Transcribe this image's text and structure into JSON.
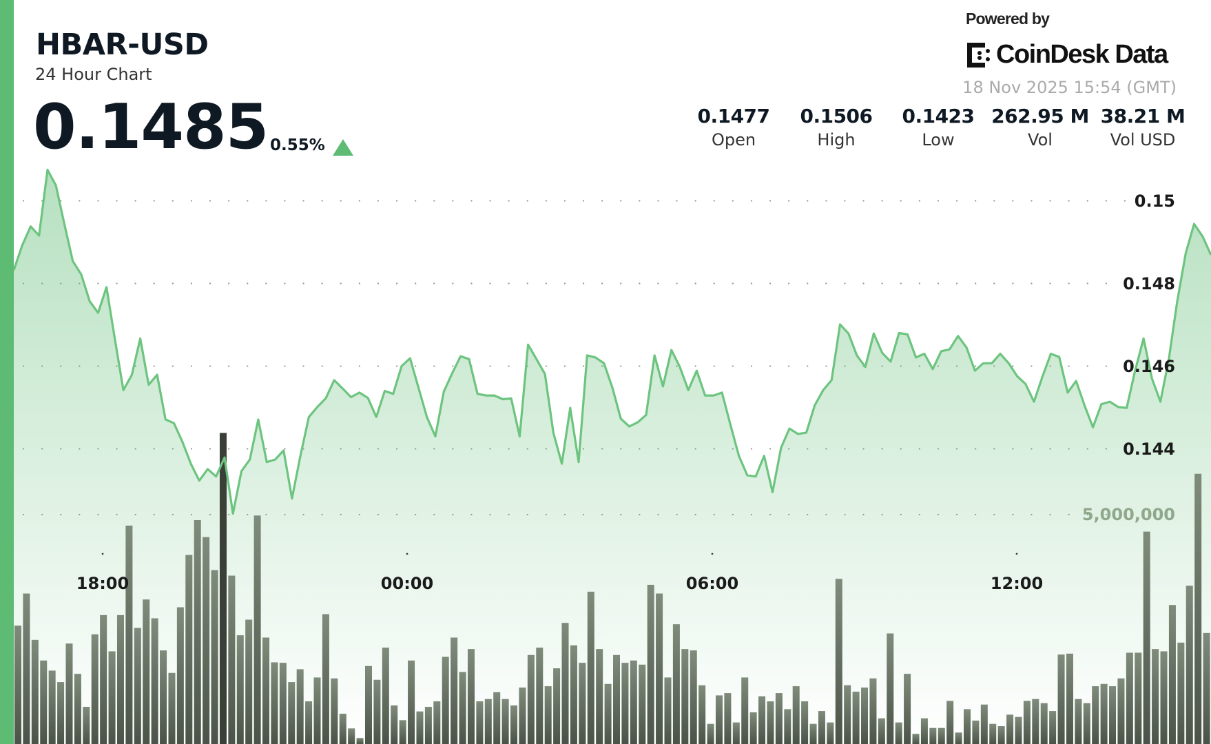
{
  "header": {
    "title": "HBAR-USD",
    "subtitle": "24 Hour Chart",
    "price": "0.1485",
    "change_pct": "0.55%",
    "change_direction": "up",
    "powered_by": "Powered by",
    "brand": "CoinDesk Data",
    "timestamp": "18 Nov 2025 15:54 (GMT)"
  },
  "stats": [
    {
      "value": "0.1477",
      "label": "Open"
    },
    {
      "value": "0.1506",
      "label": "High"
    },
    {
      "value": "0.1423",
      "label": "Low"
    },
    {
      "value": "262.95 M",
      "label": "Vol"
    },
    {
      "value": "38.21 M",
      "label": "Vol USD"
    }
  ],
  "colors": {
    "accent": "#5dbb73",
    "line": "#6cc47f",
    "volume": "#5b6457",
    "text": "#0f1923"
  },
  "chart_data": {
    "type": "area",
    "title": "",
    "interval_minutes": 10,
    "x_ticks": [
      "18:00",
      "00:00",
      "06:00",
      "12:00"
    ],
    "y_ticks": [
      "0.15",
      "0.148",
      "0.146",
      "0.144"
    ],
    "y_tick_values": [
      0.15,
      0.148,
      0.146,
      0.144
    ],
    "volume_tick": "5,000,000",
    "volume_tick_value": 5000000,
    "grid": true,
    "price": [
      0.14832,
      0.14892,
      0.14938,
      0.14916,
      0.15075,
      0.15037,
      0.14944,
      0.14854,
      0.14822,
      0.14757,
      0.14729,
      0.14791,
      0.14664,
      0.14542,
      0.14579,
      0.14667,
      0.14555,
      0.14579,
      0.14471,
      0.14462,
      0.14417,
      0.14364,
      0.14323,
      0.14351,
      0.14333,
      0.14379,
      0.14243,
      0.14346,
      0.14374,
      0.14471,
      0.14368,
      0.14374,
      0.14396,
      0.1428,
      0.14383,
      0.14477,
      0.14501,
      0.14522,
      0.14566,
      0.14546,
      0.14525,
      0.14536,
      0.14523,
      0.14477,
      0.1454,
      0.14533,
      0.146,
      0.14619,
      0.14548,
      0.14477,
      0.1443,
      0.14538,
      0.14583,
      0.14624,
      0.14617,
      0.14533,
      0.14529,
      0.14529,
      0.1452,
      0.14522,
      0.1443,
      0.14652,
      0.14617,
      0.14581,
      0.14439,
      0.14364,
      0.14499,
      0.14368,
      0.14626,
      0.14621,
      0.14607,
      0.14548,
      0.14473,
      0.14454,
      0.14464,
      0.14482,
      0.14626,
      0.14551,
      0.14639,
      0.14598,
      0.14542,
      0.14589,
      0.14529,
      0.14529,
      0.14536,
      0.14458,
      0.14383,
      0.14336,
      0.14333,
      0.14383,
      0.14295,
      0.14402,
      0.14449,
      0.14436,
      0.14439,
      0.14505,
      0.14542,
      0.14566,
      0.14701,
      0.14679,
      0.14626,
      0.14598,
      0.14679,
      0.14632,
      0.14611,
      0.1468,
      0.14677,
      0.14621,
      0.1463,
      0.14593,
      0.14636,
      0.14641,
      0.14673,
      0.14645,
      0.14589,
      0.14607,
      0.14607,
      0.1463,
      0.14607,
      0.14576,
      0.14557,
      0.14514,
      0.14574,
      0.1463,
      0.14622,
      0.14536,
      0.14564,
      0.14505,
      0.14452,
      0.14508,
      0.14514,
      0.14501,
      0.14499,
      0.14589,
      0.14667,
      0.1457,
      0.14514,
      0.14617,
      0.14757,
      0.14873,
      0.14944,
      0.14914,
      0.14869
    ],
    "volume_millions": [
      2.58,
      3.28,
      2.27,
      1.82,
      1.6,
      1.35,
      2.19,
      1.53,
      0.81,
      2.39,
      2.81,
      2.02,
      2.81,
      4.76,
      2.53,
      3.15,
      2.74,
      2.04,
      1.55,
      2.98,
      4.12,
      4.88,
      4.51,
      3.79,
      6.78,
      3.67,
      2.37,
      2.71,
      4.98,
      2.32,
      1.78,
      1.77,
      1.35,
      1.63,
      0.93,
      1.45,
      2.83,
      1.43,
      0.66,
      0.34,
      0.13,
      1.7,
      1.4,
      2.1,
      0.84,
      0.52,
      1.82,
      0.71,
      0.81,
      0.93,
      1.9,
      2.32,
      1.57,
      2.07,
      0.93,
      0.98,
      1.13,
      0.98,
      0.84,
      1.23,
      1.94,
      2.1,
      1.26,
      1.65,
      2.64,
      2.15,
      1.77,
      3.32,
      2.07,
      1.31,
      1.94,
      1.77,
      1.82,
      1.73,
      3.47,
      3.28,
      1.45,
      2.61,
      2.07,
      2.04,
      1.28,
      0.44,
      1.06,
      1.11,
      0.47,
      1.45,
      0.69,
      1.04,
      0.93,
      1.11,
      0.76,
      1.26,
      0.93,
      0.44,
      0.72,
      0.47,
      3.6,
      1.28,
      1.14,
      1.23,
      1.43,
      0.56,
      2.41,
      0.47,
      1.53,
      0.22,
      0.56,
      0.35,
      0.35,
      0.94,
      0.25,
      0.76,
      0.51,
      0.86,
      0.44,
      0.39,
      0.64,
      0.59,
      0.94,
      0.98,
      0.89,
      0.72,
      1.95,
      1.97,
      0.98,
      0.89,
      1.26,
      1.31,
      1.26,
      1.43,
      1.99,
      1.99,
      4.63,
      2.07,
      2.02,
      3.03,
      2.21,
      3.45,
      5.89,
      2.42
    ],
    "highlighted_volume_index": 24
  }
}
